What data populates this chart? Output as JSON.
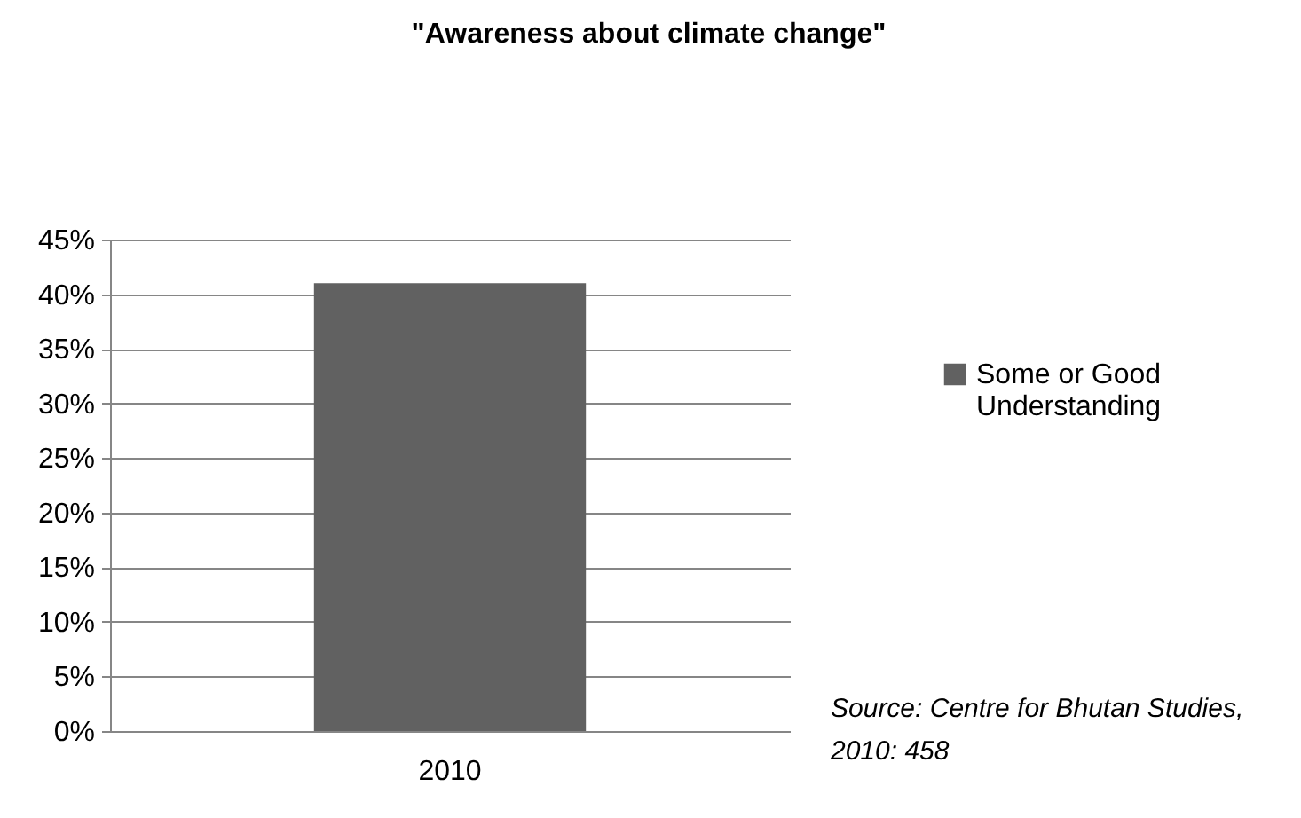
{
  "chart_data": {
    "type": "bar",
    "title": "\"Awareness about climate change\"",
    "categories": [
      "2010"
    ],
    "series": [
      {
        "name": "Some or Good Understanding",
        "color": "#616161",
        "values": [
          41
        ]
      }
    ],
    "ylim": [
      0,
      45
    ],
    "yticks": [
      {
        "value": 0,
        "label": "0%"
      },
      {
        "value": 5,
        "label": "5%"
      },
      {
        "value": 10,
        "label": "10%"
      },
      {
        "value": 15,
        "label": "15%"
      },
      {
        "value": 20,
        "label": "20%"
      },
      {
        "value": 25,
        "label": "25%"
      },
      {
        "value": 30,
        "label": "30%"
      },
      {
        "value": 35,
        "label": "35%"
      },
      {
        "value": 40,
        "label": "40%"
      },
      {
        "value": 45,
        "label": "45%"
      }
    ],
    "grid": "y",
    "legend": "right",
    "annotations": [
      "Source: Centre for Bhutan Studies, 2010: 458"
    ]
  }
}
